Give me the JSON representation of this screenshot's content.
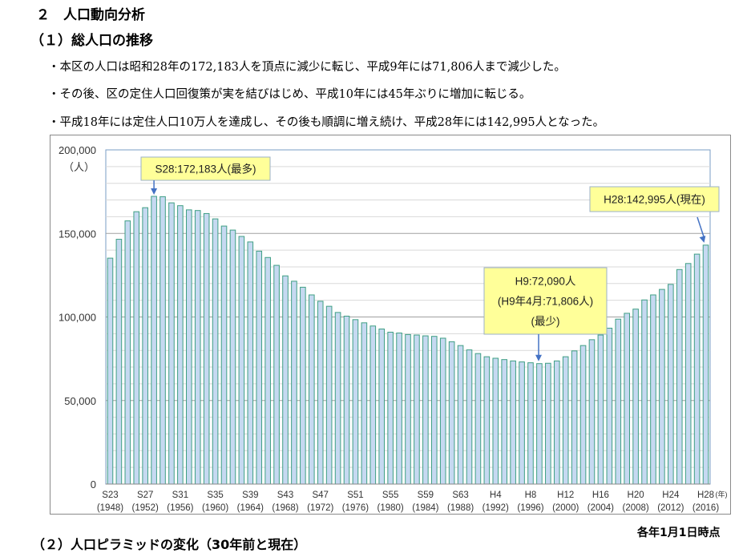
{
  "section_title": "２　人口動向分析",
  "subsection_title": "（１）総人口の推移",
  "bullets": [
    "・本区の人口は昭和28年の172,183人を頂点に減少に転じ、平成9年には71,806人まで減少した。",
    "・その後、区の定住人口回復策が実を結びはじめ、平成10年には45年ぶりに増加に転じる。",
    "・平成18年には定住人口10万人を達成し、その後も順調に増え続け、平成28年には142,995人となった。"
  ],
  "chart_data": {
    "type": "bar",
    "title": "",
    "ylabel": "（人）",
    "xlabel": "(年)",
    "ylim": [
      0,
      200000
    ],
    "yticks": [
      0,
      50000,
      100000,
      150000,
      200000
    ],
    "ytick_labels": [
      "0",
      "50,000",
      "100,000",
      "150,000",
      "200,000"
    ],
    "grid": true,
    "years": [
      1948,
      1949,
      1950,
      1951,
      1952,
      1953,
      1954,
      1955,
      1956,
      1957,
      1958,
      1959,
      1960,
      1961,
      1962,
      1963,
      1964,
      1965,
      1966,
      1967,
      1968,
      1969,
      1970,
      1971,
      1972,
      1973,
      1974,
      1975,
      1976,
      1977,
      1978,
      1979,
      1980,
      1981,
      1982,
      1983,
      1984,
      1985,
      1986,
      1987,
      1988,
      1989,
      1990,
      1991,
      1992,
      1993,
      1994,
      1995,
      1996,
      1997,
      1998,
      1999,
      2000,
      2001,
      2002,
      2003,
      2004,
      2005,
      2006,
      2007,
      2008,
      2009,
      2010,
      2011,
      2012,
      2013,
      2014,
      2015,
      2016
    ],
    "values": [
      135200,
      146500,
      157500,
      163000,
      165400,
      172183,
      172000,
      168300,
      166600,
      164100,
      163700,
      161900,
      158700,
      154400,
      152000,
      148200,
      144900,
      139400,
      135600,
      130900,
      124600,
      121400,
      117800,
      113200,
      109400,
      106400,
      102700,
      100500,
      98400,
      96500,
      94600,
      92800,
      90900,
      90400,
      89500,
      89200,
      88700,
      88400,
      87300,
      85200,
      82900,
      80300,
      78100,
      76200,
      75300,
      74500,
      73700,
      73100,
      72600,
      72090,
      72300,
      73700,
      76200,
      79700,
      82900,
      86400,
      89200,
      93300,
      98700,
      102200,
      104700,
      110200,
      113200,
      116500,
      119500,
      128400,
      132000,
      137600,
      142995
    ],
    "tick_labels": [
      {
        "era": "S23",
        "year": "(1948)"
      },
      {
        "era": "S27",
        "year": "(1952)"
      },
      {
        "era": "S31",
        "year": "(1956)"
      },
      {
        "era": "S35",
        "year": "(1960)"
      },
      {
        "era": "S39",
        "year": "(1964)"
      },
      {
        "era": "S43",
        "year": "(1968)"
      },
      {
        "era": "S47",
        "year": "(1972)"
      },
      {
        "era": "S51",
        "year": "(1976)"
      },
      {
        "era": "S55",
        "year": "(1980)"
      },
      {
        "era": "S59",
        "year": "(1984)"
      },
      {
        "era": "S63",
        "year": "(1988)"
      },
      {
        "era": "H4",
        "year": "(1992)"
      },
      {
        "era": "H8",
        "year": "(1996)"
      },
      {
        "era": "H12",
        "year": "(2000)"
      },
      {
        "era": "H16",
        "year": "(2004)"
      },
      {
        "era": "H20",
        "year": "(2008)"
      },
      {
        "era": "H24",
        "year": "(2012)"
      },
      {
        "era": "H28",
        "year": "(2016)"
      }
    ],
    "annotations": {
      "max": {
        "year": 1953,
        "lines": [
          "S28:172,183人(最多)"
        ]
      },
      "min": {
        "year": 1997,
        "lines": [
          "H9:72,090人",
          "(H9年4月:71,806人)",
          "(最少)"
        ]
      },
      "current": {
        "year": 2016,
        "lines": [
          "H28:142,995人(現在)"
        ]
      }
    },
    "colors": {
      "bar_fill": "#c6d9f1",
      "bar_edge": "#3f9f84",
      "callout": "#ffff99",
      "arrow": "#4472c4"
    }
  },
  "footnote": "各年1月1日時点",
  "next_heading": "（２）人口ピラミッドの変化（30年前と現在）"
}
